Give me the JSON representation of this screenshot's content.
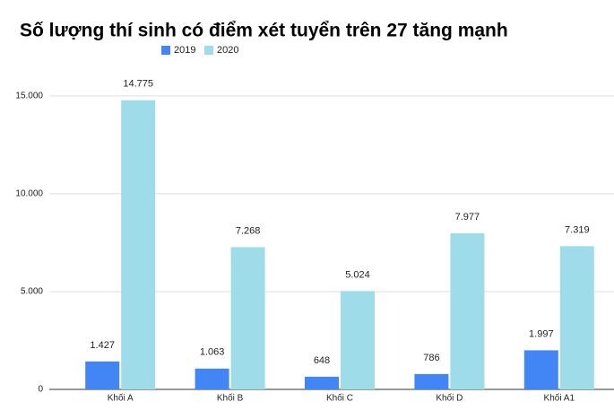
{
  "chart_data": {
    "type": "bar",
    "title": "Số lượng thí sinh có điểm xét tuyển trên 27 tăng mạnh",
    "categories": [
      "Khối A",
      "Khối B",
      "Khối C",
      "Khối D",
      "Khối A1"
    ],
    "series": [
      {
        "name": "2019",
        "color": "#4285f4",
        "values": [
          1427,
          1063,
          648,
          786,
          1997
        ],
        "value_labels": [
          "1.427",
          "1.063",
          "648",
          "786",
          "1.997"
        ]
      },
      {
        "name": "2020",
        "color": "#9fdcea",
        "values": [
          14775,
          7268,
          5024,
          7977,
          7319
        ],
        "value_labels": [
          "14.775",
          "7.268",
          "5.024",
          "7.977",
          "7.319"
        ]
      }
    ],
    "ylim": [
      0,
      16000
    ],
    "yticks": [
      0,
      {
        "value": 5000,
        "label": "5.000"
      },
      {
        "value": 10000,
        "label": "10.000"
      },
      {
        "value": 15000,
        "label": "15.000"
      }
    ],
    "grid": true
  }
}
